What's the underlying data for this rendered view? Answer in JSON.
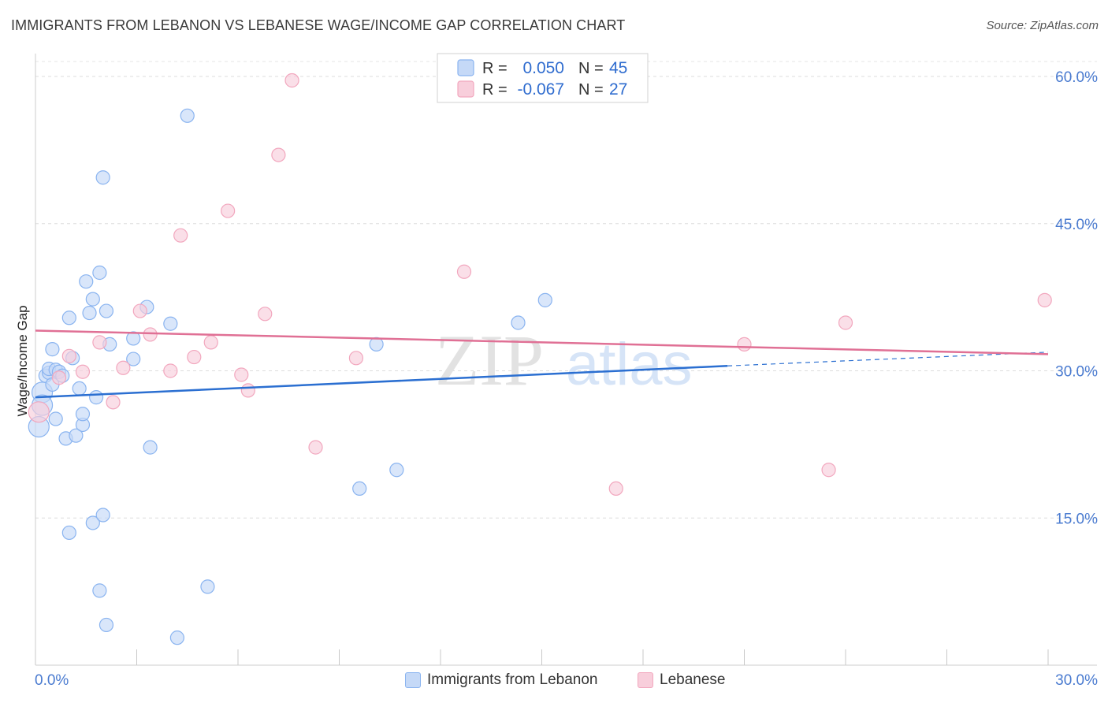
{
  "title": "IMMIGRANTS FROM LEBANON VS LEBANESE WAGE/INCOME GAP CORRELATION CHART",
  "source": "Source: ZipAtlas.com",
  "watermark": {
    "zip": "ZIP",
    "atlas": "atlas"
  },
  "chart_data": {
    "type": "scatter",
    "ylabel": "Wage/Income Gap",
    "xlim": [
      0,
      30
    ],
    "ylim": [
      0,
      60
    ],
    "x_ticks": [
      "0.0%",
      "30.0%"
    ],
    "y_ticks": [
      {
        "value": 15,
        "label": "15.0%"
      },
      {
        "value": 30,
        "label": "30.0%"
      },
      {
        "value": 45,
        "label": "45.0%"
      },
      {
        "value": 60,
        "label": "60.0%"
      }
    ],
    "series": [
      {
        "name": "Immigrants from Lebanon",
        "color": "#8ab4f0",
        "fill": "#c5d9f7",
        "line_color": "#2b6fd1",
        "r_label": "R =",
        "r_value": "0.050",
        "n_label": "N =",
        "n_value": "45",
        "trend": {
          "x0": 0,
          "y0": 27.3,
          "x1": 20.5,
          "y1": 30.5,
          "dash_to_x": 30,
          "dash_to_y": 31.9
        },
        "points": [
          [
            0.1,
            24.3
          ],
          [
            0.2,
            27.8
          ],
          [
            0.2,
            26.5
          ],
          [
            0.3,
            29.5
          ],
          [
            0.4,
            29.8
          ],
          [
            0.4,
            30.2
          ],
          [
            0.5,
            28.6
          ],
          [
            0.5,
            32.2
          ],
          [
            0.6,
            30.1
          ],
          [
            0.6,
            25.1
          ],
          [
            0.7,
            29.9
          ],
          [
            0.8,
            29.5
          ],
          [
            0.9,
            23.1
          ],
          [
            1.0,
            35.4
          ],
          [
            1.0,
            13.5
          ],
          [
            1.1,
            31.3
          ],
          [
            1.2,
            23.4
          ],
          [
            1.3,
            28.2
          ],
          [
            1.4,
            24.5
          ],
          [
            1.4,
            25.6
          ],
          [
            1.5,
            39.1
          ],
          [
            1.6,
            35.9
          ],
          [
            1.7,
            14.5
          ],
          [
            1.7,
            37.3
          ],
          [
            1.8,
            27.3
          ],
          [
            1.9,
            7.6
          ],
          [
            1.9,
            40.0
          ],
          [
            2.0,
            15.3
          ],
          [
            2.0,
            49.7
          ],
          [
            2.1,
            36.1
          ],
          [
            2.1,
            4.1
          ],
          [
            2.2,
            32.7
          ],
          [
            2.9,
            33.3
          ],
          [
            2.9,
            31.2
          ],
          [
            3.3,
            36.5
          ],
          [
            3.4,
            22.2
          ],
          [
            4.0,
            34.8
          ],
          [
            4.2,
            2.8
          ],
          [
            4.5,
            56.0
          ],
          [
            5.1,
            8.0
          ],
          [
            10.1,
            32.7
          ],
          [
            9.6,
            18.0
          ],
          [
            10.7,
            19.9
          ],
          [
            14.3,
            34.9
          ],
          [
            15.1,
            37.2
          ]
        ]
      },
      {
        "name": "Lebanese",
        "color": "#f2a7be",
        "fill": "#f8cedb",
        "line_color": "#e07095",
        "r_label": "R =",
        "r_value": "-0.067",
        "n_label": "N =",
        "n_value": "27",
        "trend": {
          "x0": 0,
          "y0": 34.1,
          "x1": 30,
          "y1": 31.7
        },
        "points": [
          [
            0.1,
            25.8
          ],
          [
            0.7,
            29.3
          ],
          [
            1.0,
            31.5
          ],
          [
            1.4,
            29.9
          ],
          [
            1.9,
            32.9
          ],
          [
            2.3,
            26.8
          ],
          [
            2.6,
            30.3
          ],
          [
            3.1,
            36.1
          ],
          [
            3.4,
            33.7
          ],
          [
            4.0,
            30.0
          ],
          [
            4.3,
            43.8
          ],
          [
            4.7,
            31.4
          ],
          [
            5.2,
            32.9
          ],
          [
            5.7,
            46.3
          ],
          [
            6.1,
            29.6
          ],
          [
            6.3,
            28.0
          ],
          [
            6.8,
            35.8
          ],
          [
            7.2,
            52.0
          ],
          [
            7.6,
            59.6
          ],
          [
            8.3,
            22.2
          ],
          [
            9.5,
            31.3
          ],
          [
            12.7,
            40.1
          ],
          [
            17.2,
            18.0
          ],
          [
            21.0,
            32.7
          ],
          [
            23.5,
            19.9
          ],
          [
            24.0,
            34.9
          ],
          [
            29.9,
            37.2
          ]
        ]
      }
    ],
    "legend_position": "top-center"
  }
}
